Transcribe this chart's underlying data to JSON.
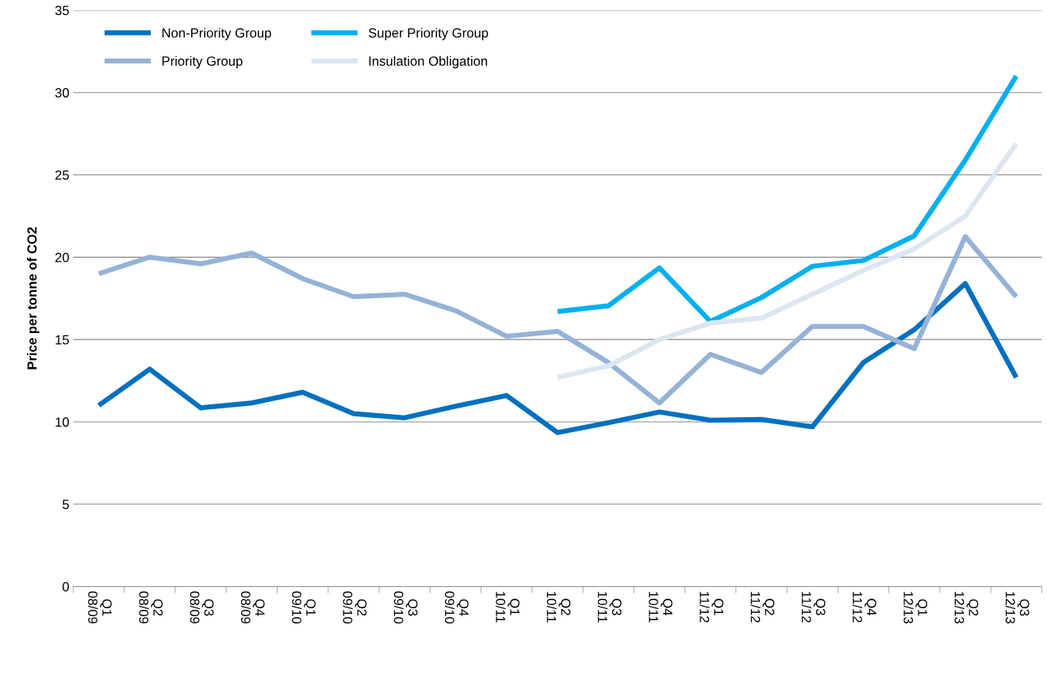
{
  "chart_data": {
    "type": "line",
    "ylabel": "Price per tonne of CO2",
    "categories": [
      "Q1\n08/09",
      "Q2\n08/09",
      "Q3\n08/09",
      "Q4\n08/09",
      "Q1\n09/10",
      "Q2\n09/10",
      "Q3\n09/10",
      "Q4\n09/10",
      "Q1\n10/11",
      "Q2\n10/11",
      "Q3\n10/11",
      "Q4\n10/11",
      "Q1\n11/12",
      "Q2\n11/12",
      "Q3\n11/12",
      "Q4\n11/12",
      "Q1\n12/13",
      "Q2\n12/13",
      "Q3\n12/13"
    ],
    "series": [
      {
        "name": "Non-Priority Group",
        "color": "#0070c0",
        "values": [
          11.0,
          13.2,
          10.85,
          11.15,
          11.8,
          10.5,
          10.25,
          10.95,
          11.6,
          9.35,
          9.95,
          10.6,
          10.1,
          10.15,
          9.7,
          13.6,
          15.6,
          18.4,
          12.7
        ]
      },
      {
        "name": "Priority Group",
        "color": "#95b3d7",
        "values": [
          19.0,
          20.0,
          19.6,
          20.25,
          18.7,
          17.6,
          17.75,
          16.75,
          15.2,
          15.5,
          13.6,
          11.15,
          14.1,
          13.0,
          15.8,
          15.8,
          14.45,
          21.25,
          17.6
        ]
      },
      {
        "name": "Super Priority Group",
        "color": "#00b0f0",
        "values": [
          null,
          null,
          null,
          null,
          null,
          null,
          null,
          null,
          null,
          16.7,
          17.05,
          19.35,
          16.1,
          17.55,
          19.45,
          19.8,
          21.3,
          25.9,
          31.0
        ]
      },
      {
        "name": "Insulation Obligation",
        "color": "#dce6f2",
        "values": [
          null,
          null,
          null,
          null,
          null,
          null,
          null,
          null,
          null,
          12.7,
          13.4,
          15.0,
          16.0,
          16.3,
          17.75,
          19.2,
          20.5,
          22.5,
          26.9
        ]
      }
    ],
    "ylim": [
      0,
      35
    ],
    "yticks": [
      0,
      5,
      10,
      15,
      20,
      25,
      30,
      35
    ],
    "grid": "y",
    "legend": "top left",
    "marker": "none",
    "line_style": "solid"
  }
}
